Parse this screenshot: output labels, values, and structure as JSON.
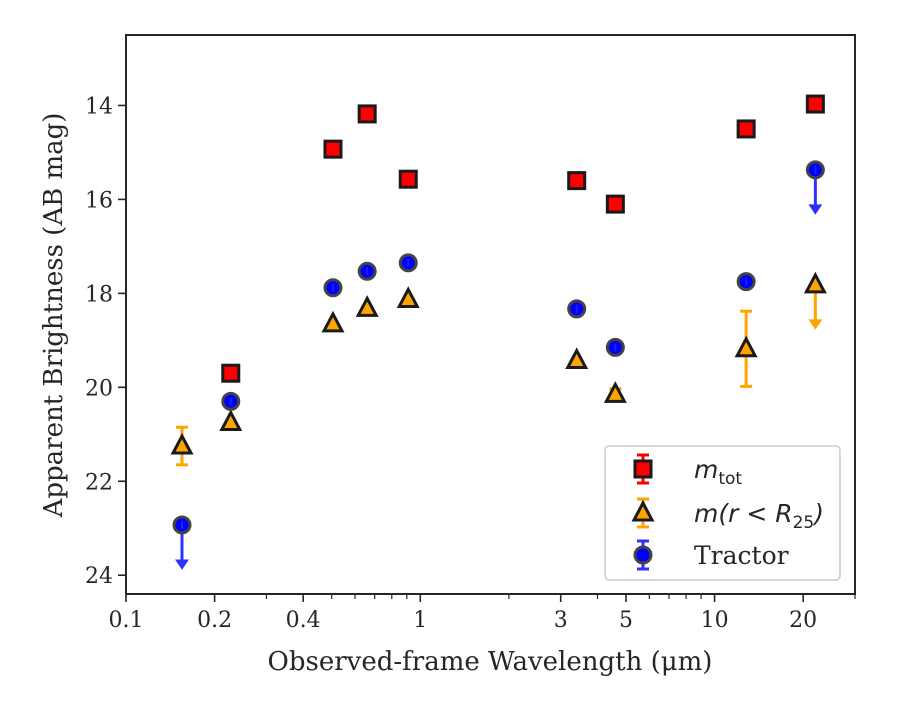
{
  "chart_data": {
    "type": "scatter",
    "xlabel": "Observed-frame Wavelength (μm)",
    "ylabel": "Apparent Brightness (AB mag)",
    "xscale": "log",
    "xlim": [
      0.1,
      30
    ],
    "ylim": [
      24.4,
      12.5
    ],
    "y_inverted": true,
    "x_ticks": [
      0.1,
      0.2,
      0.4,
      1,
      3,
      5,
      10,
      20
    ],
    "x_tick_labels": [
      "0.1",
      "0.2",
      "0.4",
      "1",
      "3",
      "5",
      "10",
      "20"
    ],
    "y_ticks": [
      14,
      16,
      18,
      20,
      22,
      24
    ],
    "y_tick_labels": [
      "14",
      "16",
      "18",
      "20",
      "22",
      "24"
    ],
    "grid": false,
    "legend_position": "bottom-right",
    "legend": [
      {
        "label_main": "m",
        "label_sub": "tot",
        "label_rest": "",
        "series": "m_tot"
      },
      {
        "label_main": "m(r < R",
        "label_sub": "25",
        "label_rest": ")",
        "series": "m_r25"
      },
      {
        "label_main": "Tractor",
        "label_sub": "",
        "label_rest": "",
        "series": "tractor"
      }
    ],
    "series": [
      {
        "key": "m_tot",
        "marker": "square",
        "color": "#ff0000",
        "edge_color": "#1a1a1a",
        "points": [
          {
            "x": 0.227,
            "y": 19.7
          },
          {
            "x": 0.505,
            "y": 14.93
          },
          {
            "x": 0.66,
            "y": 14.18
          },
          {
            "x": 0.91,
            "y": 15.57
          },
          {
            "x": 3.4,
            "y": 15.6
          },
          {
            "x": 4.6,
            "y": 16.1
          },
          {
            "x": 12.8,
            "y": 14.5
          },
          {
            "x": 22.0,
            "y": 13.97
          }
        ]
      },
      {
        "key": "m_r25",
        "marker": "triangle",
        "color": "#ffa500",
        "edge_color": "#1a1a1a",
        "points": [
          {
            "x": 0.155,
            "y": 21.25,
            "err": 0.4
          },
          {
            "x": 0.227,
            "y": 20.75
          },
          {
            "x": 0.505,
            "y": 18.65
          },
          {
            "x": 0.66,
            "y": 18.32
          },
          {
            "x": 0.91,
            "y": 18.13
          },
          {
            "x": 3.4,
            "y": 19.43
          },
          {
            "x": 4.6,
            "y": 20.15,
            "err": 0.12
          },
          {
            "x": 12.8,
            "y": 19.18,
            "err": 0.8
          },
          {
            "x": 22.0,
            "y": 17.82,
            "upper_limit": true
          }
        ]
      },
      {
        "key": "tractor",
        "marker": "circle",
        "color": "#0000ff",
        "edge_color": "#444444",
        "points": [
          {
            "x": 0.155,
            "y": 22.93,
            "upper_limit": true
          },
          {
            "x": 0.227,
            "y": 20.3
          },
          {
            "x": 0.505,
            "y": 17.88
          },
          {
            "x": 0.66,
            "y": 17.53
          },
          {
            "x": 0.91,
            "y": 17.35
          },
          {
            "x": 3.4,
            "y": 18.33
          },
          {
            "x": 4.6,
            "y": 19.15
          },
          {
            "x": 12.8,
            "y": 17.75
          },
          {
            "x": 22.0,
            "y": 15.37,
            "upper_limit": true
          }
        ]
      }
    ]
  }
}
